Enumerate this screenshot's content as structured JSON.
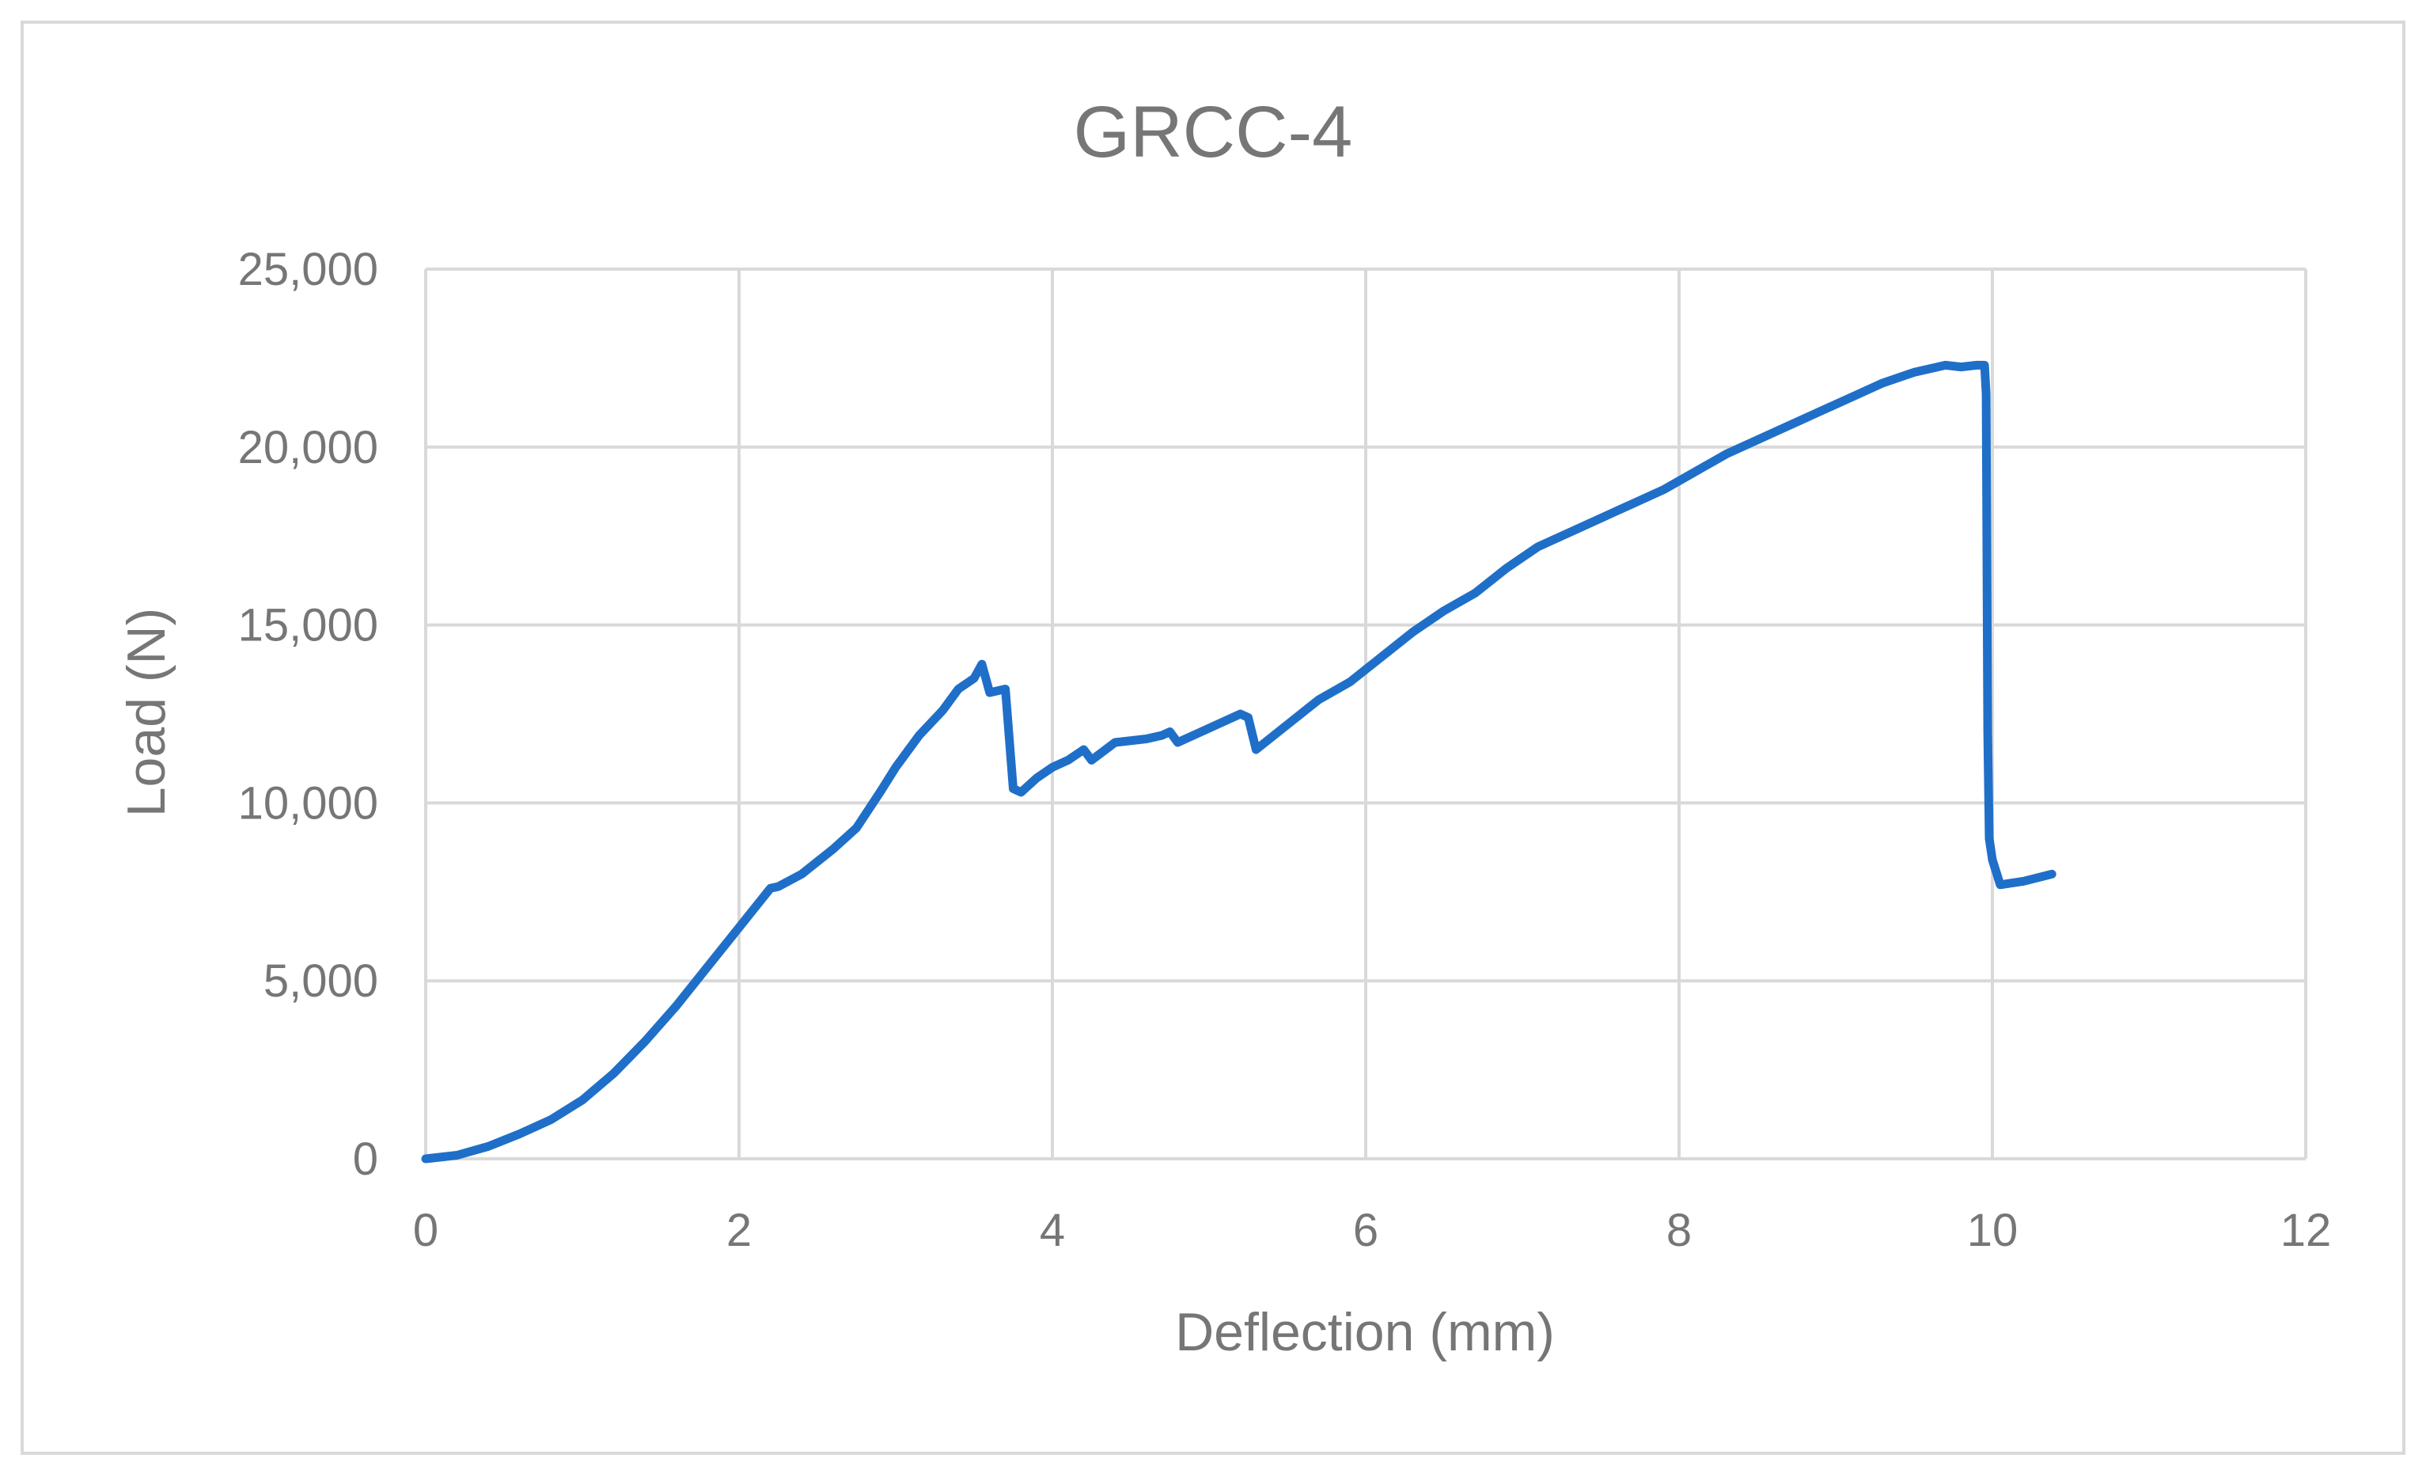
{
  "chart_data": {
    "type": "line",
    "title": "GRCC-4",
    "xlabel": "Deflection (mm)",
    "ylabel": "Load (N)",
    "xlim": [
      0,
      12
    ],
    "ylim": [
      0,
      25000
    ],
    "x_ticks": [
      0,
      2,
      4,
      6,
      8,
      10,
      12
    ],
    "y_ticks": [
      0,
      5000,
      10000,
      15000,
      20000,
      25000
    ],
    "x_tick_labels": [
      "0",
      "2",
      "4",
      "6",
      "8",
      "10",
      "12"
    ],
    "y_tick_labels": [
      "0",
      "5,000",
      "10,000",
      "15,000",
      "20,000",
      "25,000"
    ],
    "grid": true,
    "legend": "none",
    "series": [
      {
        "color": "#1f6fc9",
        "points": [
          [
            0,
            0
          ],
          [
            0.2,
            100
          ],
          [
            0.4,
            350
          ],
          [
            0.6,
            700
          ],
          [
            0.8,
            1100
          ],
          [
            1.0,
            1650
          ],
          [
            1.2,
            2400
          ],
          [
            1.4,
            3300
          ],
          [
            1.6,
            4300
          ],
          [
            1.8,
            5400
          ],
          [
            2.0,
            6500
          ],
          [
            2.2,
            7600
          ],
          [
            2.25,
            7650
          ],
          [
            2.4,
            8000
          ],
          [
            2.6,
            8700
          ],
          [
            2.75,
            9300
          ],
          [
            2.9,
            10300
          ],
          [
            3.0,
            11000
          ],
          [
            3.15,
            11900
          ],
          [
            3.3,
            12600
          ],
          [
            3.4,
            13200
          ],
          [
            3.5,
            13500
          ],
          [
            3.55,
            13900
          ],
          [
            3.6,
            13100
          ],
          [
            3.7,
            13200
          ],
          [
            3.75,
            10400
          ],
          [
            3.8,
            10300
          ],
          [
            3.9,
            10700
          ],
          [
            4.0,
            11000
          ],
          [
            4.1,
            11200
          ],
          [
            4.2,
            11500
          ],
          [
            4.25,
            11200
          ],
          [
            4.4,
            11700
          ],
          [
            4.6,
            11800
          ],
          [
            4.7,
            11900
          ],
          [
            4.75,
            12000
          ],
          [
            4.8,
            11700
          ],
          [
            5.0,
            12100
          ],
          [
            5.2,
            12500
          ],
          [
            5.25,
            12400
          ],
          [
            5.3,
            11500
          ],
          [
            5.5,
            12200
          ],
          [
            5.7,
            12900
          ],
          [
            5.9,
            13400
          ],
          [
            6.1,
            14100
          ],
          [
            6.3,
            14800
          ],
          [
            6.5,
            15400
          ],
          [
            6.7,
            15900
          ],
          [
            6.9,
            16600
          ],
          [
            7.1,
            17200
          ],
          [
            7.3,
            17600
          ],
          [
            7.5,
            18000
          ],
          [
            7.7,
            18400
          ],
          [
            7.9,
            18800
          ],
          [
            8.1,
            19300
          ],
          [
            8.3,
            19800
          ],
          [
            8.5,
            20200
          ],
          [
            8.7,
            20600
          ],
          [
            8.9,
            21000
          ],
          [
            9.1,
            21400
          ],
          [
            9.3,
            21800
          ],
          [
            9.5,
            22100
          ],
          [
            9.7,
            22300
          ],
          [
            9.8,
            22250
          ],
          [
            9.9,
            22300
          ],
          [
            9.95,
            22300
          ],
          [
            9.96,
            21500
          ],
          [
            9.97,
            12000
          ],
          [
            9.98,
            9000
          ],
          [
            10.0,
            8400
          ],
          [
            10.05,
            7700
          ],
          [
            10.2,
            7800
          ],
          [
            10.38,
            8000
          ]
        ]
      }
    ]
  }
}
